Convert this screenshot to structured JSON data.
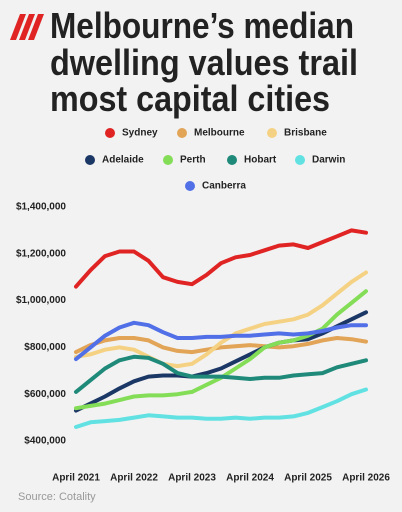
{
  "chart_data": {
    "type": "line",
    "title": [
      "Melbourne’s median",
      "dwelling values trail",
      "most capital cities"
    ],
    "source": "Source: Cotality",
    "categories": [
      "April 2021",
      null,
      null,
      null,
      "April 2022",
      null,
      null,
      null,
      "April 2023",
      null,
      null,
      null,
      "April 2024",
      null,
      null,
      null,
      "April 2025",
      null,
      null,
      null,
      "April 2026"
    ],
    "series": [
      {
        "name": "Sydney",
        "color": "#e02424",
        "values": [
          1060000,
          1130000,
          1190000,
          1210000,
          1210000,
          1170000,
          1100000,
          1080000,
          1070000,
          1110000,
          1160000,
          1185000,
          1195000,
          1215000,
          1235000,
          1240000,
          1225000,
          1250000,
          1275000,
          1300000,
          1290000
        ]
      },
      {
        "name": "Melbourne",
        "color": "#e2a457",
        "values": [
          780000,
          810000,
          830000,
          840000,
          840000,
          830000,
          800000,
          785000,
          780000,
          790000,
          800000,
          805000,
          810000,
          805000,
          800000,
          805000,
          815000,
          830000,
          840000,
          835000,
          825000
        ]
      },
      {
        "name": "Brisbane",
        "color": "#f5d283",
        "values": [
          760000,
          770000,
          790000,
          800000,
          790000,
          760000,
          730000,
          720000,
          730000,
          770000,
          820000,
          860000,
          880000,
          900000,
          910000,
          920000,
          940000,
          980000,
          1030000,
          1080000,
          1120000
        ]
      },
      {
        "name": "Adelaide",
        "color": "#1b3766",
        "values": [
          530000,
          560000,
          590000,
          625000,
          655000,
          675000,
          680000,
          680000,
          675000,
          690000,
          710000,
          740000,
          770000,
          800000,
          820000,
          830000,
          835000,
          860000,
          890000,
          920000,
          950000
        ]
      },
      {
        "name": "Perth",
        "color": "#84dd57",
        "values": [
          540000,
          550000,
          560000,
          575000,
          590000,
          595000,
          595000,
          600000,
          610000,
          640000,
          670000,
          710000,
          750000,
          800000,
          820000,
          830000,
          850000,
          880000,
          940000,
          990000,
          1040000
        ]
      },
      {
        "name": "Hobart",
        "color": "#1f8a7a",
        "values": [
          610000,
          660000,
          710000,
          745000,
          760000,
          755000,
          730000,
          690000,
          675000,
          675000,
          675000,
          670000,
          665000,
          670000,
          670000,
          680000,
          685000,
          690000,
          715000,
          730000,
          745000
        ]
      },
      {
        "name": "Darwin",
        "color": "#62e1e3",
        "values": [
          460000,
          480000,
          485000,
          490000,
          500000,
          510000,
          505000,
          500000,
          500000,
          495000,
          495000,
          500000,
          495000,
          500000,
          500000,
          505000,
          520000,
          545000,
          570000,
          600000,
          620000
        ]
      },
      {
        "name": "Canberra",
        "color": "#5170e8",
        "values": [
          750000,
          800000,
          850000,
          885000,
          905000,
          895000,
          865000,
          840000,
          840000,
          845000,
          845000,
          850000,
          850000,
          855000,
          860000,
          855000,
          860000,
          870000,
          885000,
          895000,
          895000
        ]
      }
    ],
    "ylim": [
      350000,
      1450000
    ],
    "yticks": [
      {
        "value": 400000,
        "label": "$400,000"
      },
      {
        "value": 600000,
        "label": "$600,000"
      },
      {
        "value": 800000,
        "label": "$800,000"
      },
      {
        "value": 1000000,
        "label": "$1,000,000"
      },
      {
        "value": 1200000,
        "label": "$1,200,000"
      },
      {
        "value": 1400000,
        "label": "$1,400,000"
      }
    ],
    "grid": false
  }
}
